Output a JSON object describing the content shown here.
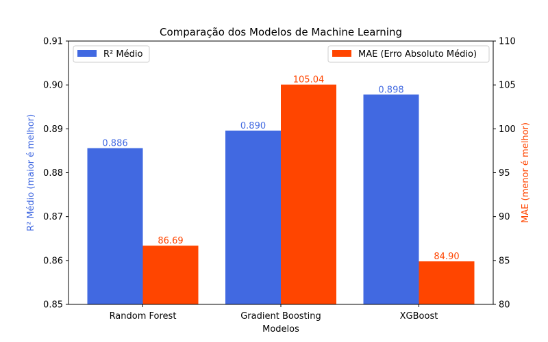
{
  "chart_data": {
    "type": "bar",
    "title": "Comparação dos Modelos de Machine Learning",
    "xlabel": "Modelos",
    "ylabel_left": "R² Médio (maior é melhor)",
    "ylabel_right": "MAE (menor é melhor)",
    "categories": [
      "Random Forest",
      "Gradient Boosting",
      "XGBoost"
    ],
    "ylim_left": [
      0.85,
      0.91
    ],
    "yticks_left": [
      "0.85",
      "0.86",
      "0.87",
      "0.88",
      "0.89",
      "0.90",
      "0.91"
    ],
    "ylim_right": [
      80,
      110
    ],
    "yticks_right": [
      "80",
      "85",
      "90",
      "95",
      "100",
      "105",
      "110"
    ],
    "grid": false,
    "series": [
      {
        "name": "R² Médio",
        "axis": "left",
        "color": "#4169E1",
        "values": [
          0.8856,
          0.8896,
          0.8978
        ],
        "labels": [
          "0.886",
          "0.890",
          "0.898"
        ],
        "legend_position": "top-left"
      },
      {
        "name": "MAE (Erro Absoluto Médio)",
        "axis": "right",
        "color": "#FF4500",
        "values": [
          86.69,
          105.04,
          84.9
        ],
        "labels": [
          "86.69",
          "105.04",
          "84.90"
        ],
        "legend_position": "top-right"
      }
    ]
  }
}
